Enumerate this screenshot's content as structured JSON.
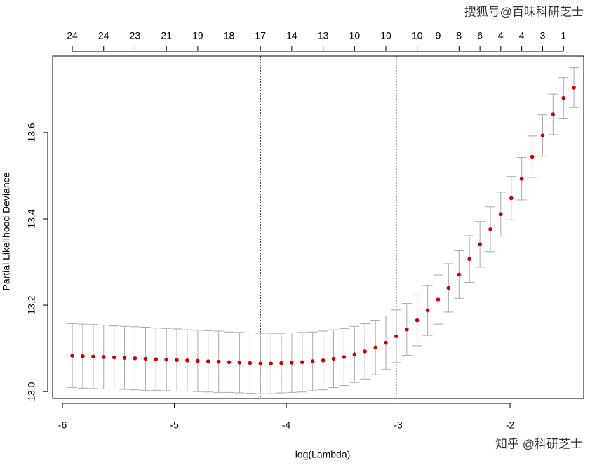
{
  "chart_data": {
    "type": "errorbar",
    "xlabel": "log(Lambda)",
    "ylabel": "Partial Likelihood Deviance",
    "watermark_top": "搜狐号@百味科研芝士",
    "watermark_bottom": "知乎 @科研芝士",
    "x": [
      -5.912,
      -5.819,
      -5.725,
      -5.632,
      -5.538,
      -5.445,
      -5.352,
      -5.258,
      -5.165,
      -5.071,
      -4.978,
      -4.885,
      -4.791,
      -4.698,
      -4.604,
      -4.511,
      -4.418,
      -4.324,
      -4.231,
      -4.137,
      -4.044,
      -3.951,
      -3.857,
      -3.764,
      -3.67,
      -3.577,
      -3.484,
      -3.39,
      -3.297,
      -3.203,
      -3.11,
      -3.017,
      -2.923,
      -2.83,
      -2.736,
      -2.643,
      -2.55,
      -2.456,
      -2.363,
      -2.269,
      -2.176,
      -2.083,
      -1.989,
      -1.896,
      -1.802,
      -1.709,
      -1.616,
      -1.522,
      -1.429
    ],
    "values": [
      13.083,
      13.082,
      13.081,
      13.08,
      13.079,
      13.078,
      13.077,
      13.076,
      13.075,
      13.074,
      13.073,
      13.072,
      13.071,
      13.07,
      13.069,
      13.068,
      13.067,
      13.066,
      13.065,
      13.065,
      13.066,
      13.067,
      13.068,
      13.07,
      13.072,
      13.076,
      13.08,
      13.086,
      13.093,
      13.102,
      13.113,
      13.128,
      13.144,
      13.165,
      13.188,
      13.213,
      13.24,
      13.271,
      13.307,
      13.341,
      13.376,
      13.411,
      13.448,
      13.493,
      13.544,
      13.593,
      13.642,
      13.68,
      13.704
    ],
    "errors": [
      0.074,
      0.074,
      0.074,
      0.074,
      0.073,
      0.073,
      0.073,
      0.073,
      0.072,
      0.072,
      0.072,
      0.071,
      0.071,
      0.071,
      0.071,
      0.07,
      0.07,
      0.07,
      0.07,
      0.07,
      0.069,
      0.069,
      0.069,
      0.068,
      0.068,
      0.067,
      0.066,
      0.065,
      0.064,
      0.063,
      0.062,
      0.061,
      0.06,
      0.059,
      0.058,
      0.057,
      0.056,
      0.055,
      0.054,
      0.053,
      0.052,
      0.051,
      0.05,
      0.049,
      0.048,
      0.048,
      0.047,
      0.047,
      0.046
    ],
    "point_color": "#cc0000",
    "error_color": "#a9a9a9",
    "vlines": [
      -4.231,
      -3.017
    ],
    "top_ticks": [
      -5.912,
      -5.632,
      -5.352,
      -5.071,
      -4.791,
      -4.511,
      -4.231,
      -3.951,
      -3.67,
      -3.39,
      -3.11,
      -2.83,
      -2.643,
      -2.456,
      -2.269,
      -2.083,
      -1.896,
      -1.709,
      -1.522
    ],
    "top_labels": [
      24,
      24,
      23,
      21,
      19,
      18,
      17,
      14,
      13,
      10,
      10,
      10,
      9,
      8,
      6,
      4,
      4,
      3,
      1
    ],
    "xlim": [
      -6.088,
      -1.342
    ],
    "ylim": [
      12.984,
      13.777
    ],
    "xticks": [
      -6,
      -5,
      -4,
      -3,
      -2
    ],
    "yticks": [
      {
        "value": 13,
        "label": "13.0"
      },
      13.2,
      13.4,
      13.6
    ]
  }
}
